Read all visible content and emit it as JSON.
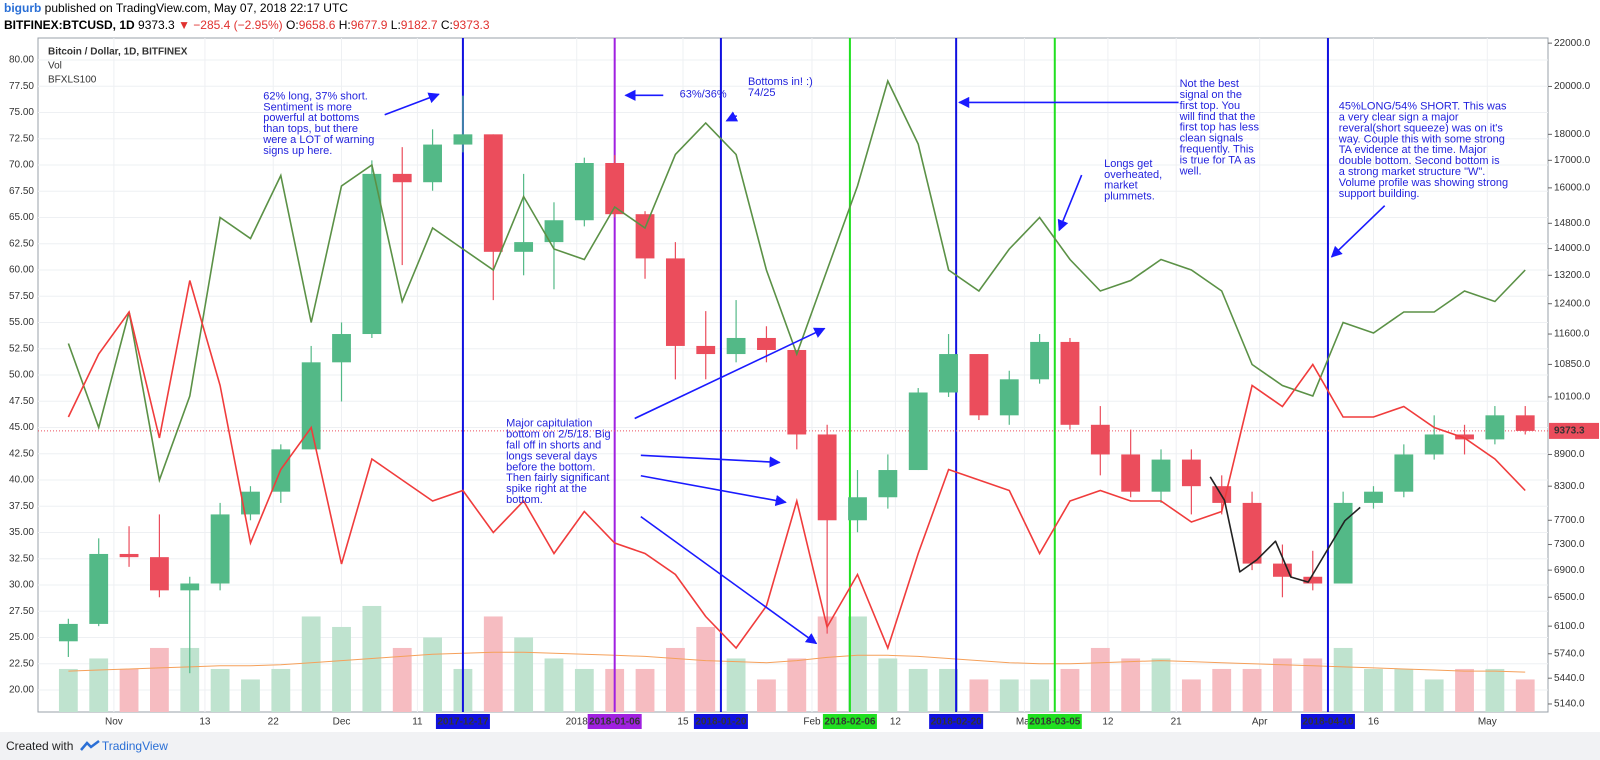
{
  "header": {
    "user": "bigurb",
    "published": "published on TradingView.com, May 07, 2018 22:17 UTC",
    "symbol": "BITFINEX:BTCUSD, 1D",
    "last": "9373.3",
    "change": "▼ −285.4 (−2.95%)",
    "ohlc": [
      {
        "label": "O:",
        "value": "9658.6"
      },
      {
        "label": "H:",
        "value": "9677.9"
      },
      {
        "label": "L:",
        "value": "9182.7"
      },
      {
        "label": "C:",
        "value": "9373.3"
      }
    ]
  },
  "footer": {
    "created": "Created with",
    "brand": "TradingView"
  },
  "chart_data": {
    "type": "candlestick",
    "legend": [
      "Bitcoin / Dollar, 1D, BITFINEX",
      "Vol",
      "BFXLS100"
    ],
    "x": [
      "2017-10-26",
      "2017-10-30",
      "2017-11-03",
      "2017-11-07",
      "2017-11-11",
      "2017-11-15",
      "2017-11-19",
      "2017-11-23",
      "2017-11-27",
      "2017-12-01",
      "2017-12-05",
      "2017-12-09",
      "2017-12-13",
      "2017-12-17",
      "2017-12-21",
      "2017-12-25",
      "2017-12-29",
      "2018-01-02",
      "2018-01-06",
      "2018-01-10",
      "2018-01-14",
      "2018-01-18",
      "2018-01-22",
      "2018-01-26",
      "2018-01-30",
      "2018-02-03",
      "2018-02-07",
      "2018-02-11",
      "2018-02-15",
      "2018-02-19",
      "2018-02-23",
      "2018-02-27",
      "2018-03-03",
      "2018-03-07",
      "2018-03-11",
      "2018-03-15",
      "2018-03-19",
      "2018-03-23",
      "2018-03-27",
      "2018-03-31",
      "2018-04-04",
      "2018-04-08",
      "2018-04-12",
      "2018-04-16",
      "2018-04-20",
      "2018-04-24",
      "2018-04-28",
      "2018-05-02",
      "2018-05-06"
    ],
    "xlim": [
      "2017-10-22",
      "2018-05-09"
    ],
    "xticks": [
      {
        "value": "2017-11-01",
        "label": "Nov"
      },
      {
        "value": "2017-11-13",
        "label": "13"
      },
      {
        "value": "2017-11-22",
        "label": "22"
      },
      {
        "value": "2017-12-01",
        "label": "Dec"
      },
      {
        "value": "2017-12-11",
        "label": "11"
      },
      {
        "value": "2018-01-01",
        "label": "2018"
      },
      {
        "value": "2018-01-15",
        "label": "15"
      },
      {
        "value": "2018-02-01",
        "label": "Feb"
      },
      {
        "value": "2018-02-12",
        "label": "12"
      },
      {
        "value": "2018-03-01",
        "label": "Mar"
      },
      {
        "value": "2018-03-12",
        "label": "12"
      },
      {
        "value": "2018-03-21",
        "label": "21"
      },
      {
        "value": "2018-04-01",
        "label": "Apr"
      },
      {
        "value": "2018-04-16",
        "label": "16"
      },
      {
        "value": "2018-05-01",
        "label": "May"
      }
    ],
    "ylim": [
      17.9,
      82.1
    ],
    "yticks": [
      {
        "value": 20,
        "label": "20.00"
      },
      {
        "value": 22.5,
        "label": "22.50"
      },
      {
        "value": 25,
        "label": "25.00"
      },
      {
        "value": 27.5,
        "label": "27.50"
      },
      {
        "value": 30,
        "label": "30.00"
      },
      {
        "value": 32.5,
        "label": "32.50"
      },
      {
        "value": 35,
        "label": "35.00"
      },
      {
        "value": 37.5,
        "label": "37.50"
      },
      {
        "value": 40,
        "label": "40.00"
      },
      {
        "value": 42.5,
        "label": "42.50"
      },
      {
        "value": 45,
        "label": "45.00"
      },
      {
        "value": 47.5,
        "label": "47.50"
      },
      {
        "value": 50,
        "label": "50.00"
      },
      {
        "value": 52.5,
        "label": "52.50"
      },
      {
        "value": 55,
        "label": "55.00"
      },
      {
        "value": 57.5,
        "label": "57.50"
      },
      {
        "value": 60,
        "label": "60.00"
      },
      {
        "value": 62.5,
        "label": "62.50"
      },
      {
        "value": 65,
        "label": "65.00"
      },
      {
        "value": 67.5,
        "label": "67.50"
      },
      {
        "value": 70,
        "label": "70.00"
      },
      {
        "value": 72.5,
        "label": "72.50"
      },
      {
        "value": 75,
        "label": "75.00"
      },
      {
        "value": 77.5,
        "label": "77.50"
      },
      {
        "value": 80,
        "label": "80.00"
      }
    ],
    "y2lim": [
      5050,
      22250
    ],
    "y2log": true,
    "y2ticks": [
      {
        "value": 5140,
        "label": "5140.0"
      },
      {
        "value": 5440,
        "label": "5440.0"
      },
      {
        "value": 5740,
        "label": "5740.0"
      },
      {
        "value": 6100,
        "label": "6100.0"
      },
      {
        "value": 6500,
        "label": "6500.0"
      },
      {
        "value": 6900,
        "label": "6900.0"
      },
      {
        "value": 7300,
        "label": "7300.0"
      },
      {
        "value": 7700,
        "label": "7700.0"
      },
      {
        "value": 8300,
        "label": "8300.0"
      },
      {
        "value": 8900,
        "label": "8900.0"
      },
      {
        "value": 10100,
        "label": "10100.0"
      },
      {
        "value": 10850,
        "label": "10850.0"
      },
      {
        "value": 11600,
        "label": "11600.0"
      },
      {
        "value": 12400,
        "label": "12400.0"
      },
      {
        "value": 13200,
        "label": "13200.0"
      },
      {
        "value": 14000,
        "label": "14000.0"
      },
      {
        "value": 14800,
        "label": "14800.0"
      },
      {
        "value": 16000,
        "label": "16000.0"
      },
      {
        "value": 17000,
        "label": "17000.0"
      },
      {
        "value": 18000,
        "label": "18000.0"
      },
      {
        "value": 20000,
        "label": "20000.0"
      },
      {
        "value": 22000,
        "label": "22000.0"
      }
    ],
    "grid": true,
    "candles": {
      "axis": "y2",
      "up_color": "#53b987",
      "down_color": "#eb4d5c",
      "open": [
        5900,
        6130,
        7150,
        7100,
        6600,
        6700,
        7800,
        8200,
        9000,
        10900,
        11600,
        16500,
        16200,
        17600,
        18000,
        13900,
        14200,
        14900,
        16900,
        15100,
        13700,
        11300,
        11100,
        11500,
        11200,
        9300,
        7700,
        8100,
        8600,
        10200,
        11100,
        9700,
        10500,
        11400,
        9500,
        8900,
        8200,
        8800,
        8300,
        8000,
        7000,
        6800,
        6700,
        8000,
        8200,
        8900,
        9300,
        9200,
        9700
      ],
      "high": [
        6200,
        7400,
        7600,
        7800,
        6800,
        8000,
        8300,
        9100,
        11300,
        11900,
        17000,
        17500,
        18200,
        19600,
        18000,
        16500,
        15500,
        17100,
        17200,
        15200,
        14200,
        12200,
        12500,
        11800,
        11200,
        9500,
        8600,
        8900,
        10300,
        11600,
        11100,
        10700,
        11600,
        11500,
        9900,
        9400,
        9000,
        9000,
        8500,
        8200,
        7300,
        7200,
        8200,
        8300,
        9100,
        9700,
        9500,
        9900,
        9900
      ],
      "low": [
        5700,
        6100,
        6950,
        6500,
        5500,
        6600,
        7700,
        8000,
        9000,
        10000,
        11500,
        13500,
        15900,
        17300,
        12500,
        13200,
        12800,
        14700,
        15000,
        13100,
        10500,
        10500,
        10900,
        10900,
        9000,
        6000,
        7500,
        7900,
        8600,
        10100,
        9600,
        9500,
        10400,
        9400,
        8500,
        8100,
        8000,
        7800,
        7800,
        6900,
        6500,
        6600,
        6700,
        7900,
        8100,
        8800,
        8900,
        9100,
        9300
      ],
      "close": [
        6130,
        7150,
        7100,
        6600,
        6700,
        7800,
        8200,
        9000,
        10900,
        11600,
        16500,
        16200,
        17600,
        18000,
        13900,
        14200,
        14900,
        16900,
        15100,
        13700,
        11300,
        11100,
        11500,
        11200,
        9300,
        7700,
        8100,
        8600,
        10200,
        11100,
        9700,
        10500,
        11400,
        9500,
        8900,
        8200,
        8800,
        8300,
        8000,
        7000,
        6800,
        6700,
        8000,
        8200,
        8900,
        9300,
        9200,
        9700,
        9373.3
      ]
    },
    "last_price_label": "9373.3",
    "volume": {
      "up_color": "#bfe3cf",
      "down_color": "#f6bcc1",
      "values": [
        22,
        23,
        22,
        24,
        24,
        22,
        21,
        22,
        27,
        26,
        28,
        24,
        25,
        22,
        27,
        25,
        23,
        22,
        22,
        22,
        24,
        26,
        23,
        21,
        23,
        27,
        27,
        23,
        22,
        22,
        21,
        21,
        21,
        22,
        24,
        23,
        23,
        21,
        22,
        22,
        23,
        23,
        24,
        22,
        22,
        21,
        22,
        22,
        21
      ]
    },
    "volume_ma": {
      "color": "#f5a05a",
      "values": [
        21.8,
        21.9,
        22.0,
        22.1,
        22.2,
        22.3,
        22.3,
        22.4,
        22.6,
        22.8,
        23.0,
        23.2,
        23.4,
        23.5,
        23.6,
        23.6,
        23.5,
        23.4,
        23.3,
        23.2,
        23.0,
        22.8,
        22.7,
        22.6,
        22.8,
        23.1,
        23.3,
        23.3,
        23.2,
        23.0,
        22.8,
        22.6,
        22.5,
        22.5,
        22.6,
        22.7,
        22.8,
        22.7,
        22.6,
        22.5,
        22.4,
        22.3,
        22.2,
        22.1,
        22.0,
        21.9,
        21.8,
        21.8,
        21.7
      ]
    },
    "series": [
      {
        "color": "#5b9146",
        "values": [
          53,
          45,
          56,
          40,
          48,
          65,
          63,
          69,
          55,
          68,
          70,
          57,
          64,
          62,
          60,
          67,
          62,
          61,
          66,
          64,
          71,
          74,
          71,
          60,
          52,
          60,
          68,
          78,
          72,
          60,
          58,
          62,
          65,
          61,
          58,
          59,
          61,
          60,
          58,
          51,
          49,
          48,
          55,
          54,
          56,
          56,
          58,
          57,
          60
        ]
      },
      {
        "color": "#f03c3c",
        "values": [
          46,
          52,
          56,
          44,
          59,
          49,
          34,
          41,
          45,
          32,
          42,
          40,
          38,
          39,
          35,
          38,
          33,
          37,
          34,
          33,
          31,
          27,
          24,
          28,
          38,
          26,
          31,
          24,
          33,
          41,
          40,
          39,
          33,
          38,
          39,
          38,
          38,
          36,
          37,
          49,
          47,
          51,
          46,
          46,
          47,
          45,
          44,
          42,
          39
        ]
      }
    ],
    "markers": [
      {
        "date": "2017-12-17",
        "color": "#1010e0",
        "text_color": "#ffffff"
      },
      {
        "date": "2018-01-06",
        "color": "#a020e0",
        "text_color": "#ffffff"
      },
      {
        "date": "2018-01-20",
        "color": "#1010e0",
        "text_color": "#ffffff"
      },
      {
        "date": "2018-02-06",
        "color": "#20e020",
        "text_color": "#000000"
      },
      {
        "date": "2018-02-20",
        "color": "#1010e0",
        "text_color": "#ffffff"
      },
      {
        "date": "2018-03-05",
        "color": "#20e020",
        "text_color": "#000000"
      },
      {
        "date": "2018-04-10",
        "color": "#1010e0",
        "text_color": "#ffffff"
      }
    ],
    "annotations": [
      {
        "lines": [
          "62% long, 37% short.",
          "Sentiment is more",
          "powerful at bottoms",
          "than tops, but there",
          "were a LOT of warning",
          "signs up here."
        ]
      },
      {
        "lines": [
          "63%/36%"
        ]
      },
      {
        "lines": [
          "Bottoms in! :)",
          "74/25"
        ]
      },
      {
        "lines": [
          "Not the best",
          "signal on the",
          "first top.  You",
          "will find that the",
          "first top has less",
          "clean signals",
          "frequently.  This",
          "is true for TA as",
          "well."
        ]
      },
      {
        "lines": [
          "Longs get",
          "overheated,",
          "market",
          "plummets."
        ]
      },
      {
        "lines": [
          "45%LONG/54% SHORT.  This was",
          "a very clear sign a major",
          "reveral(short squeeze) was on it's",
          "way.  Couple this with some strong",
          "TA evidence at the time.  Major",
          "double bottom.  Second bottom is",
          "a strong market structure \"W\".",
          "Volume profile was showing strong",
          "support building."
        ]
      },
      {
        "lines": [
          "Major capitulation",
          "bottom on 2/5/18.  Big",
          "fall off in shorts and",
          "longs several days",
          "before the bottom.",
          "Then fairly significant",
          "spike right at the",
          "bottom."
        ]
      }
    ]
  }
}
